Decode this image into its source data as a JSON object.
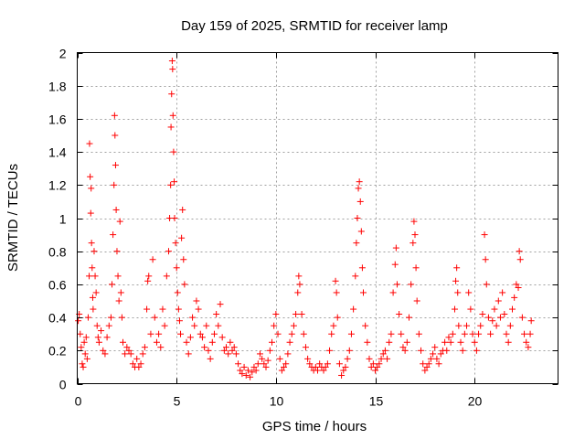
{
  "chart_data": {
    "type": "scatter",
    "title": "Day 159 of 2025, SRMTID for receiver lamp",
    "xlabel": "GPS time / hours",
    "ylabel": "SRMTID / TECUs",
    "xlim": [
      0,
      24.2
    ],
    "ylim": [
      0,
      2
    ],
    "xticks": [
      0,
      5,
      10,
      15,
      20
    ],
    "xtick_labels": [
      "0",
      "5",
      "10",
      "15",
      "20"
    ],
    "yticks": [
      0,
      0.2,
      0.4,
      0.6,
      0.8,
      1,
      1.2,
      1.4,
      1.6,
      1.8,
      2
    ],
    "ytick_labels": [
      "0",
      "0.2",
      "0.4",
      "0.6",
      "0.8",
      "1",
      "1.2",
      "1.4",
      "1.6",
      "1.8",
      "2"
    ],
    "grid": true,
    "marker": "+",
    "colors": {
      "series": "#ff0000",
      "grid": "#a0a0a0",
      "axis": "#000000"
    },
    "series": [
      {
        "name": "SRMTID",
        "points": [
          [
            0.05,
            0.38
          ],
          [
            0.1,
            0.42
          ],
          [
            0.15,
            0.3
          ],
          [
            0.2,
            0.22
          ],
          [
            0.25,
            0.12
          ],
          [
            0.3,
            0.1
          ],
          [
            0.35,
            0.25
          ],
          [
            0.4,
            0.18
          ],
          [
            0.45,
            0.28
          ],
          [
            0.5,
            0.15
          ],
          [
            0.55,
            0.4
          ],
          [
            0.6,
            0.65
          ],
          [
            0.62,
            1.45
          ],
          [
            0.65,
            1.25
          ],
          [
            0.68,
            1.03
          ],
          [
            0.7,
            1.18
          ],
          [
            0.72,
            0.85
          ],
          [
            0.75,
            0.7
          ],
          [
            0.78,
            0.52
          ],
          [
            0.8,
            0.45
          ],
          [
            0.85,
            0.8
          ],
          [
            0.9,
            0.65
          ],
          [
            0.95,
            0.55
          ],
          [
            1.0,
            0.35
          ],
          [
            1.05,
            0.28
          ],
          [
            1.1,
            0.25
          ],
          [
            1.2,
            0.32
          ],
          [
            1.3,
            0.2
          ],
          [
            1.4,
            0.18
          ],
          [
            1.5,
            0.28
          ],
          [
            1.6,
            0.35
          ],
          [
            1.7,
            0.4
          ],
          [
            1.75,
            0.6
          ],
          [
            1.8,
            0.9
          ],
          [
            1.85,
            1.2
          ],
          [
            1.88,
            1.62
          ],
          [
            1.9,
            1.5
          ],
          [
            1.93,
            1.32
          ],
          [
            1.96,
            1.05
          ],
          [
            2.0,
            0.8
          ],
          [
            2.05,
            0.65
          ],
          [
            2.1,
            0.5
          ],
          [
            2.15,
            0.98
          ],
          [
            2.2,
            0.55
          ],
          [
            2.25,
            0.4
          ],
          [
            2.3,
            0.25
          ],
          [
            2.4,
            0.18
          ],
          [
            2.5,
            0.22
          ],
          [
            2.6,
            0.2
          ],
          [
            2.7,
            0.18
          ],
          [
            2.8,
            0.12
          ],
          [
            2.9,
            0.1
          ],
          [
            3.0,
            0.15
          ],
          [
            3.1,
            0.1
          ],
          [
            3.2,
            0.12
          ],
          [
            3.3,
            0.18
          ],
          [
            3.4,
            0.22
          ],
          [
            3.5,
            0.45
          ],
          [
            3.55,
            0.62
          ],
          [
            3.6,
            0.65
          ],
          [
            3.7,
            0.3
          ],
          [
            3.8,
            0.75
          ],
          [
            3.9,
            0.4
          ],
          [
            4.0,
            0.25
          ],
          [
            4.1,
            0.3
          ],
          [
            4.2,
            0.22
          ],
          [
            4.3,
            0.45
          ],
          [
            4.4,
            0.35
          ],
          [
            4.5,
            0.65
          ],
          [
            4.6,
            0.8
          ],
          [
            4.65,
            1.0
          ],
          [
            4.7,
            1.2
          ],
          [
            4.72,
            1.55
          ],
          [
            4.75,
            1.75
          ],
          [
            4.78,
            1.95
          ],
          [
            4.8,
            1.9
          ],
          [
            4.82,
            1.62
          ],
          [
            4.85,
            1.4
          ],
          [
            4.88,
            1.22
          ],
          [
            4.9,
            1.0
          ],
          [
            4.95,
            0.85
          ],
          [
            5.0,
            0.7
          ],
          [
            5.05,
            0.55
          ],
          [
            5.1,
            0.45
          ],
          [
            5.15,
            0.38
          ],
          [
            5.2,
            0.3
          ],
          [
            5.25,
            0.88
          ],
          [
            5.3,
            1.05
          ],
          [
            5.35,
            0.75
          ],
          [
            5.4,
            0.6
          ],
          [
            5.5,
            0.25
          ],
          [
            5.6,
            0.18
          ],
          [
            5.7,
            0.28
          ],
          [
            5.8,
            0.4
          ],
          [
            5.9,
            0.35
          ],
          [
            6.0,
            0.5
          ],
          [
            6.1,
            0.45
          ],
          [
            6.2,
            0.3
          ],
          [
            6.3,
            0.28
          ],
          [
            6.4,
            0.22
          ],
          [
            6.5,
            0.35
          ],
          [
            6.6,
            0.2
          ],
          [
            6.7,
            0.15
          ],
          [
            6.8,
            0.25
          ],
          [
            6.9,
            0.3
          ],
          [
            7.0,
            0.42
          ],
          [
            7.1,
            0.35
          ],
          [
            7.2,
            0.48
          ],
          [
            7.3,
            0.28
          ],
          [
            7.4,
            0.2
          ],
          [
            7.5,
            0.22
          ],
          [
            7.6,
            0.18
          ],
          [
            7.7,
            0.25
          ],
          [
            7.8,
            0.2
          ],
          [
            7.9,
            0.22
          ],
          [
            8.0,
            0.18
          ],
          [
            8.1,
            0.12
          ],
          [
            8.2,
            0.08
          ],
          [
            8.3,
            0.06
          ],
          [
            8.4,
            0.1
          ],
          [
            8.5,
            0.05
          ],
          [
            8.6,
            0.08
          ],
          [
            8.7,
            0.04
          ],
          [
            8.8,
            0.07
          ],
          [
            8.9,
            0.1
          ],
          [
            9.0,
            0.08
          ],
          [
            9.1,
            0.12
          ],
          [
            9.2,
            0.18
          ],
          [
            9.3,
            0.15
          ],
          [
            9.4,
            0.12
          ],
          [
            9.5,
            0.1
          ],
          [
            9.6,
            0.14
          ],
          [
            9.7,
            0.2
          ],
          [
            9.8,
            0.25
          ],
          [
            9.9,
            0.35
          ],
          [
            10.0,
            0.42
          ],
          [
            10.1,
            0.3
          ],
          [
            10.2,
            0.15
          ],
          [
            10.3,
            0.08
          ],
          [
            10.4,
            0.1
          ],
          [
            10.5,
            0.12
          ],
          [
            10.6,
            0.18
          ],
          [
            10.7,
            0.25
          ],
          [
            10.8,
            0.3
          ],
          [
            10.9,
            0.35
          ],
          [
            11.0,
            0.42
          ],
          [
            11.1,
            0.55
          ],
          [
            11.15,
            0.65
          ],
          [
            11.2,
            0.6
          ],
          [
            11.3,
            0.42
          ],
          [
            11.4,
            0.3
          ],
          [
            11.5,
            0.22
          ],
          [
            11.6,
            0.15
          ],
          [
            11.7,
            0.12
          ],
          [
            11.8,
            0.1
          ],
          [
            11.9,
            0.08
          ],
          [
            12.0,
            0.1
          ],
          [
            12.1,
            0.08
          ],
          [
            12.2,
            0.12
          ],
          [
            12.3,
            0.1
          ],
          [
            12.4,
            0.08
          ],
          [
            12.5,
            0.1
          ],
          [
            12.6,
            0.12
          ],
          [
            12.7,
            0.2
          ],
          [
            12.8,
            0.3
          ],
          [
            12.9,
            0.35
          ],
          [
            13.0,
            0.62
          ],
          [
            13.05,
            0.55
          ],
          [
            13.1,
            0.4
          ],
          [
            13.2,
            0.12
          ],
          [
            13.3,
            0.05
          ],
          [
            13.4,
            0.08
          ],
          [
            13.5,
            0.1
          ],
          [
            13.6,
            0.15
          ],
          [
            13.7,
            0.2
          ],
          [
            13.8,
            0.3
          ],
          [
            13.9,
            0.45
          ],
          [
            14.0,
            0.65
          ],
          [
            14.05,
            0.85
          ],
          [
            14.1,
            1.0
          ],
          [
            14.15,
            1.18
          ],
          [
            14.2,
            1.22
          ],
          [
            14.25,
            1.1
          ],
          [
            14.3,
            0.92
          ],
          [
            14.35,
            0.7
          ],
          [
            14.4,
            0.55
          ],
          [
            14.5,
            0.35
          ],
          [
            14.6,
            0.25
          ],
          [
            14.7,
            0.15
          ],
          [
            14.8,
            0.1
          ],
          [
            14.9,
            0.12
          ],
          [
            15.0,
            0.08
          ],
          [
            15.1,
            0.1
          ],
          [
            15.2,
            0.12
          ],
          [
            15.3,
            0.15
          ],
          [
            15.4,
            0.18
          ],
          [
            15.5,
            0.2
          ],
          [
            15.6,
            0.15
          ],
          [
            15.7,
            0.25
          ],
          [
            15.8,
            0.3
          ],
          [
            15.9,
            0.55
          ],
          [
            16.0,
            0.72
          ],
          [
            16.05,
            0.82
          ],
          [
            16.1,
            0.6
          ],
          [
            16.2,
            0.42
          ],
          [
            16.3,
            0.3
          ],
          [
            16.4,
            0.22
          ],
          [
            16.5,
            0.2
          ],
          [
            16.6,
            0.25
          ],
          [
            16.7,
            0.4
          ],
          [
            16.8,
            0.6
          ],
          [
            16.9,
            0.85
          ],
          [
            16.95,
            0.98
          ],
          [
            17.0,
            0.9
          ],
          [
            17.05,
            0.7
          ],
          [
            17.1,
            0.5
          ],
          [
            17.2,
            0.3
          ],
          [
            17.3,
            0.2
          ],
          [
            17.4,
            0.12
          ],
          [
            17.5,
            0.08
          ],
          [
            17.6,
            0.1
          ],
          [
            17.7,
            0.12
          ],
          [
            17.8,
            0.15
          ],
          [
            17.9,
            0.18
          ],
          [
            18.0,
            0.22
          ],
          [
            18.1,
            0.15
          ],
          [
            18.2,
            0.12
          ],
          [
            18.3,
            0.18
          ],
          [
            18.4,
            0.2
          ],
          [
            18.5,
            0.25
          ],
          [
            18.6,
            0.2
          ],
          [
            18.7,
            0.28
          ],
          [
            18.8,
            0.25
          ],
          [
            18.9,
            0.3
          ],
          [
            19.0,
            0.45
          ],
          [
            19.05,
            0.62
          ],
          [
            19.1,
            0.7
          ],
          [
            19.15,
            0.55
          ],
          [
            19.2,
            0.35
          ],
          [
            19.3,
            0.25
          ],
          [
            19.4,
            0.2
          ],
          [
            19.5,
            0.3
          ],
          [
            19.6,
            0.35
          ],
          [
            19.7,
            0.55
          ],
          [
            19.8,
            0.45
          ],
          [
            19.9,
            0.3
          ],
          [
            20.0,
            0.25
          ],
          [
            20.1,
            0.2
          ],
          [
            20.2,
            0.3
          ],
          [
            20.3,
            0.35
          ],
          [
            20.4,
            0.42
          ],
          [
            20.5,
            0.9
          ],
          [
            20.55,
            0.75
          ],
          [
            20.6,
            0.6
          ],
          [
            20.7,
            0.4
          ],
          [
            20.8,
            0.3
          ],
          [
            20.9,
            0.38
          ],
          [
            21.0,
            0.45
          ],
          [
            21.1,
            0.35
          ],
          [
            21.2,
            0.5
          ],
          [
            21.3,
            0.4
          ],
          [
            21.4,
            0.55
          ],
          [
            21.5,
            0.42
          ],
          [
            21.6,
            0.3
          ],
          [
            21.7,
            0.25
          ],
          [
            21.8,
            0.35
          ],
          [
            21.9,
            0.45
          ],
          [
            22.0,
            0.52
          ],
          [
            22.1,
            0.6
          ],
          [
            22.2,
            0.58
          ],
          [
            22.25,
            0.8
          ],
          [
            22.3,
            0.75
          ],
          [
            22.4,
            0.4
          ],
          [
            22.5,
            0.3
          ],
          [
            22.6,
            0.25
          ],
          [
            22.7,
            0.22
          ],
          [
            22.8,
            0.3
          ],
          [
            22.85,
            0.38
          ]
        ]
      }
    ]
  }
}
